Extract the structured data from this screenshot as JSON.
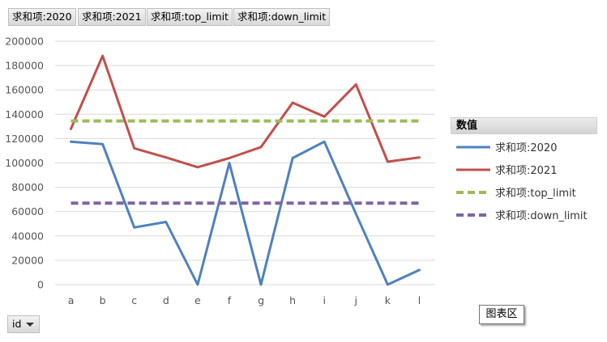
{
  "field_buttons": [
    "求和项:2020",
    "求和项:2021",
    "求和项:top_limit",
    "求和项:down_limit"
  ],
  "legend_title": "数值",
  "row_field": "id",
  "tooltip": "图表区",
  "colors": {
    "2020": "#4f81bd",
    "2021": "#c0504d",
    "top_limit": "#9bbb59",
    "down_limit": "#8064a2"
  },
  "chart_data": {
    "type": "line",
    "categories": [
      "a",
      "b",
      "c",
      "d",
      "e",
      "f",
      "g",
      "h",
      "i",
      "j",
      "k",
      "l"
    ],
    "ylim": [
      0,
      200000
    ],
    "yticks": [
      0,
      20000,
      40000,
      60000,
      80000,
      100000,
      120000,
      140000,
      160000,
      180000,
      200000
    ],
    "grid": true,
    "legend_position": "right",
    "series": [
      {
        "name": "求和项:2020",
        "color": "#4f81bd",
        "dashed": false,
        "values": [
          117500,
          115500,
          47000,
          51500,
          0,
          100000,
          0,
          104000,
          117500,
          58000,
          0,
          12000
        ]
      },
      {
        "name": "求和项:2021",
        "color": "#c0504d",
        "dashed": false,
        "values": [
          128000,
          188000,
          112000,
          104500,
          96500,
          104000,
          113000,
          149500,
          138000,
          164500,
          101000,
          104500
        ]
      },
      {
        "name": "求和项:top_limit",
        "color": "#9bbb59",
        "dashed": true,
        "values": [
          134500,
          134500,
          134500,
          134500,
          134500,
          134500,
          134500,
          134500,
          134500,
          134500,
          134500,
          134500
        ]
      },
      {
        "name": "求和项:down_limit",
        "color": "#8064a2",
        "dashed": true,
        "values": [
          67000,
          67000,
          67000,
          67000,
          67000,
          67000,
          67000,
          67000,
          67000,
          67000,
          67000,
          67000
        ]
      }
    ]
  }
}
